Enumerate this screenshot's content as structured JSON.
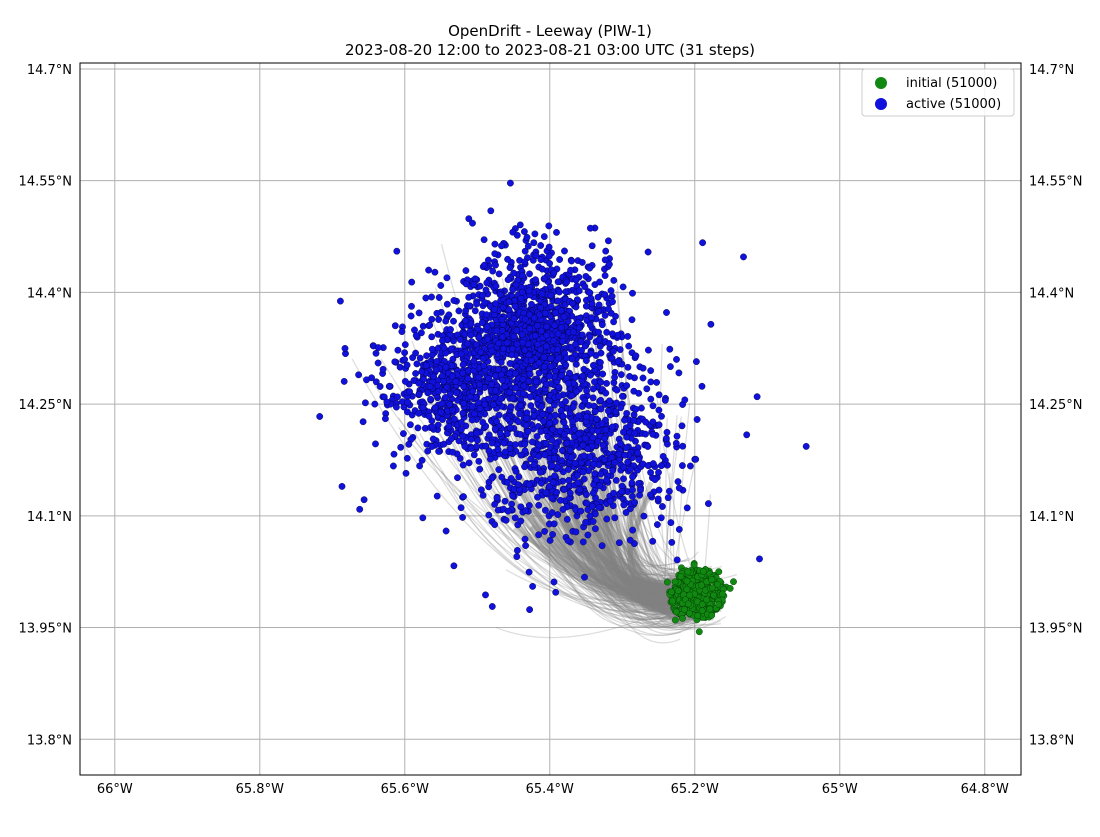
{
  "figure": {
    "title": "OpenDrift - Leeway (PIW-1)",
    "subtitle": "2023-08-20 12:00 to 2023-08-21 03:00 UTC (31 steps)"
  },
  "chart_data": {
    "type": "scatter",
    "projection": "map",
    "xlim": [
      -66.048,
      -64.75
    ],
    "ylim": [
      13.752,
      14.708
    ],
    "x_ticks": [
      -66.0,
      -65.8,
      -65.6,
      -65.4,
      -65.2,
      -65.0,
      -64.8
    ],
    "x_tick_labels": [
      "66°W",
      "65.8°W",
      "65.6°W",
      "65.4°W",
      "65.2°W",
      "65°W",
      "64.8°W"
    ],
    "y_ticks": [
      13.8,
      13.95,
      14.1,
      14.25,
      14.4,
      14.55,
      14.7
    ],
    "y_tick_labels": [
      "13.8°N",
      "13.95°N",
      "14.1°N",
      "14.25°N",
      "14.4°N",
      "14.55°N",
      "14.7°N"
    ],
    "grid": true,
    "legend_position": "top-right",
    "series": [
      {
        "name": "initial (51000)",
        "color": "#118811",
        "center": [
          -65.198,
          13.995
        ],
        "radius_deg": 0.035
      },
      {
        "name": "active (51000)",
        "color": "#1111dd",
        "center": [
          -65.41,
          14.26
        ],
        "extent": "irregular cloud"
      }
    ],
    "trajectories": {
      "color": "#808080",
      "description": "gray drift tracks from initial to active positions"
    }
  }
}
